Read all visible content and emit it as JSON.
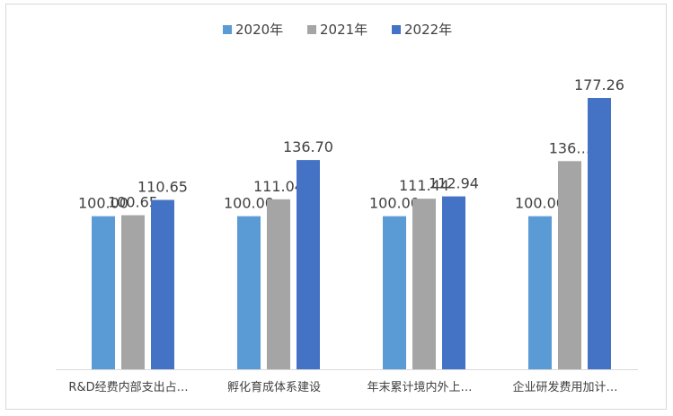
{
  "chart_data": {
    "type": "bar",
    "categories": [
      "R&D经费内部支出占…",
      "孵化育成体系建设",
      "年末累计境内外上…",
      "企业研发费用加计…"
    ],
    "series": [
      {
        "name": "2020年",
        "color": "#5b9bd5",
        "values": [
          100.0,
          100.0,
          100.0,
          100.0
        ],
        "labels": [
          "100.00",
          "100.00",
          "100.00",
          "100.00"
        ]
      },
      {
        "name": "2021年",
        "color": "#a5a5a5",
        "values": [
          100.65,
          111.04,
          111.44,
          136.0
        ],
        "labels": [
          "100.65",
          "111.04",
          "111.44",
          "136…"
        ]
      },
      {
        "name": "2022年",
        "color": "#4472c4",
        "values": [
          110.65,
          136.7,
          112.94,
          177.26
        ],
        "labels": [
          "110.65",
          "136.70",
          "112.94",
          "177.26"
        ]
      }
    ],
    "ylim": [
      0,
      200
    ],
    "grid": false,
    "legend": "top-center"
  }
}
